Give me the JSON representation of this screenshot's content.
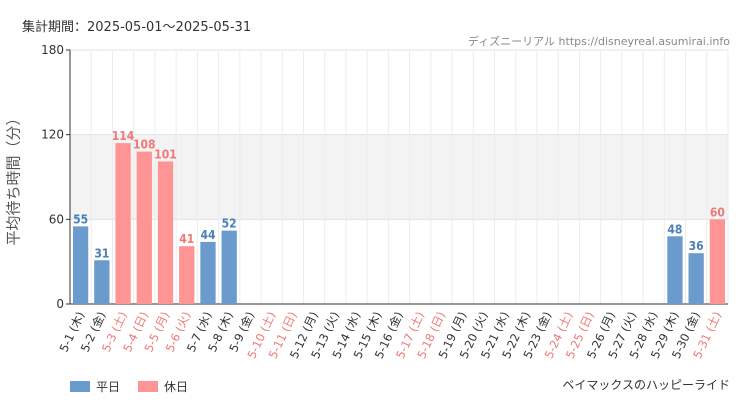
{
  "header": {
    "period": "集計期間：2025-05-01～2025-05-31",
    "credit": "ディズニーリアル https://disneyreal.asumirai.info"
  },
  "footer": {
    "attraction": "ベイマックスのハッピーライド"
  },
  "colors": {
    "weekday": "#6b9bcc",
    "holiday": "#ff9494",
    "weekday_text": "#4b7fb8",
    "holiday_text": "#f07878",
    "band": "#f3f3f3"
  },
  "chart_data": {
    "type": "bar",
    "ylabel": "平均待ち時間（分）",
    "ylim": [
      0,
      180
    ],
    "yticks": [
      0,
      60,
      120,
      180
    ],
    "highlight_band": [
      60,
      120
    ],
    "grid": true,
    "legend_position": "bottom-left",
    "categories": [
      "5-1 (木)",
      "5-2 (金)",
      "5-3 (土)",
      "5-4 (日)",
      "5-5 (月)",
      "5-6 (火)",
      "5-7 (水)",
      "5-8 (木)",
      "5-9 (金)",
      "5-10 (土)",
      "5-11 (日)",
      "5-12 (月)",
      "5-13 (火)",
      "5-14 (水)",
      "5-15 (木)",
      "5-16 (金)",
      "5-17 (土)",
      "5-18 (日)",
      "5-19 (月)",
      "5-20 (火)",
      "5-21 (水)",
      "5-22 (木)",
      "5-23 (金)",
      "5-24 (土)",
      "5-25 (日)",
      "5-26 (月)",
      "5-27 (火)",
      "5-28 (水)",
      "5-29 (木)",
      "5-30 (金)",
      "5-31 (土)"
    ],
    "day_type": [
      "weekday",
      "weekday",
      "holiday",
      "holiday",
      "holiday",
      "holiday",
      "weekday",
      "weekday",
      "weekday",
      "holiday",
      "holiday",
      "weekday",
      "weekday",
      "weekday",
      "weekday",
      "weekday",
      "holiday",
      "holiday",
      "weekday",
      "weekday",
      "weekday",
      "weekday",
      "weekday",
      "holiday",
      "holiday",
      "weekday",
      "weekday",
      "weekday",
      "weekday",
      "weekday",
      "holiday"
    ],
    "series": [
      {
        "name": "平日",
        "values": [
          55,
          31,
          null,
          null,
          null,
          null,
          44,
          52,
          null,
          null,
          null,
          null,
          null,
          null,
          null,
          null,
          null,
          null,
          null,
          null,
          null,
          null,
          null,
          null,
          null,
          null,
          null,
          null,
          48,
          36,
          null
        ]
      },
      {
        "name": "休日",
        "values": [
          null,
          null,
          114,
          108,
          101,
          41,
          null,
          null,
          null,
          null,
          null,
          null,
          null,
          null,
          null,
          null,
          null,
          null,
          null,
          null,
          null,
          null,
          null,
          null,
          null,
          null,
          null,
          null,
          null,
          null,
          60
        ]
      }
    ]
  }
}
